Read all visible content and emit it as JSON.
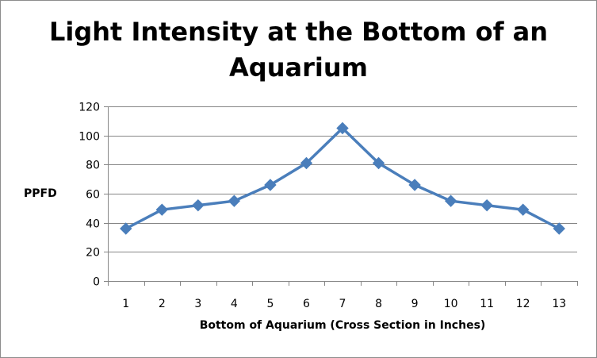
{
  "chart_data": {
    "type": "line",
    "title_lines": [
      "Light Intensity at the Bottom of an",
      "Aquarium"
    ],
    "xlabel": "Bottom of Aquarium (Cross Section in Inches)",
    "ylabel": "PPFD",
    "categories": [
      "1",
      "2",
      "3",
      "4",
      "5",
      "6",
      "7",
      "8",
      "9",
      "10",
      "11",
      "12",
      "13"
    ],
    "series": [
      {
        "values": [
          36,
          49,
          52,
          55,
          66,
          81,
          105,
          81,
          66,
          55,
          52,
          49,
          36
        ],
        "color": "#4a7ebb",
        "marker": "diamond"
      }
    ],
    "ylim": [
      0,
      120
    ],
    "yticks": [
      0,
      20,
      40,
      60,
      80,
      100,
      120
    ],
    "gridlines": true,
    "legend": "none"
  }
}
